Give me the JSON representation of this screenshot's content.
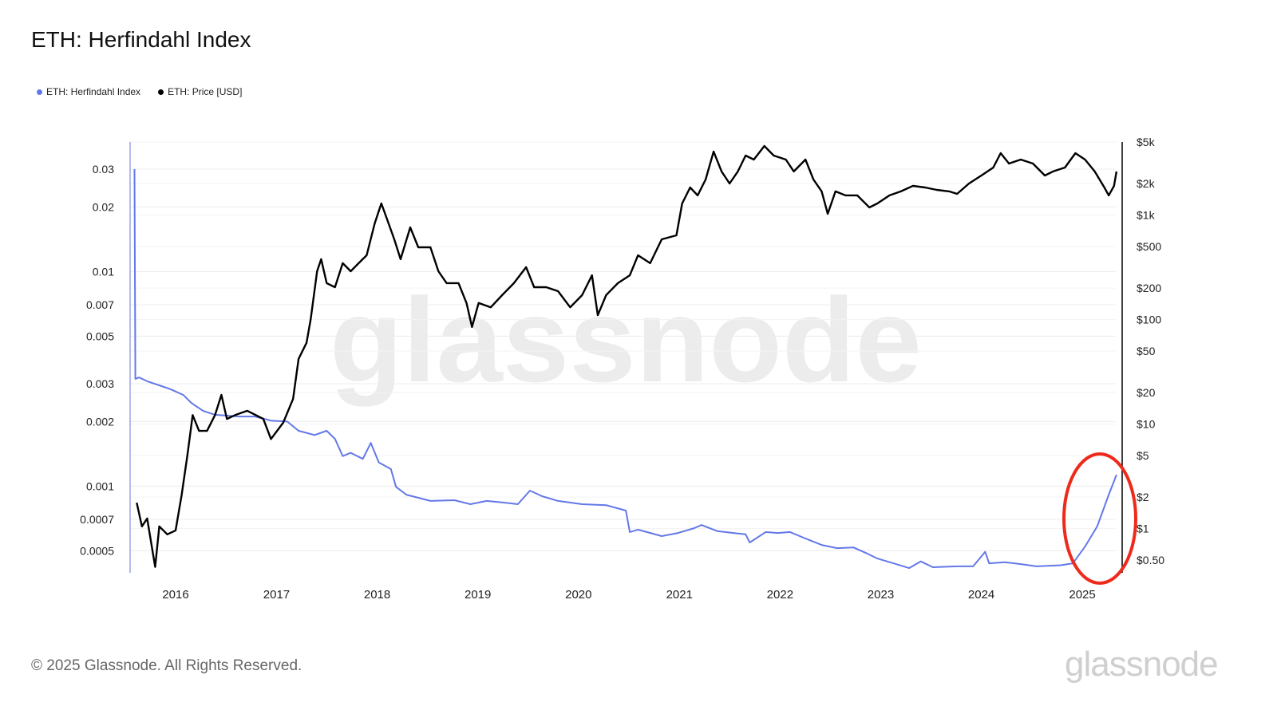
{
  "chart_data": {
    "type": "line",
    "title": "ETH: Herfindahl Index",
    "legend_position": "top-left",
    "grid": true,
    "x_ticks": [
      "2016",
      "2017",
      "2018",
      "2019",
      "2020",
      "2021",
      "2022",
      "2023",
      "2024",
      "2025"
    ],
    "xlim": [
      "2015-07-30",
      "2025-05-10"
    ],
    "y_left": {
      "scale": "log",
      "ticks": [
        "0.03",
        "0.02",
        "0.01",
        "0.007",
        "0.005",
        "0.003",
        "0.002",
        "0.001",
        "0.0007",
        "0.0005"
      ],
      "range": [
        0.00043,
        0.032
      ]
    },
    "y_right": {
      "scale": "log",
      "ticks": [
        "$5k",
        "$2k",
        "$1k",
        "$500",
        "$200",
        "$100",
        "$50",
        "$20",
        "$10",
        "$5",
        "$2",
        "$1",
        "$0.50"
      ],
      "tick_values": [
        5000,
        2000,
        1000,
        500,
        200,
        100,
        50,
        20,
        10,
        5,
        2,
        1,
        0.5
      ],
      "range": [
        0.5,
        5000
      ]
    },
    "series": [
      {
        "name": "ETH: Herfindahl Index",
        "color": "#6378e8",
        "axis": "left",
        "points": [
          [
            "2015-08-05",
            0.03
          ],
          [
            "2015-08-08",
            0.00316
          ],
          [
            "2015-08-22",
            0.00321
          ],
          [
            "2015-09-20",
            0.00308
          ],
          [
            "2015-11-03",
            0.00295
          ],
          [
            "2015-12-16",
            0.00282
          ],
          [
            "2016-01-29",
            0.00266
          ],
          [
            "2016-02-27",
            0.00244
          ],
          [
            "2016-04-10",
            0.00224
          ],
          [
            "2016-05-23",
            0.00215
          ],
          [
            "2016-08-18",
            0.00211
          ],
          [
            "2016-10-15",
            0.00211
          ],
          [
            "2016-12-12",
            0.00202
          ],
          [
            "2017-02-09",
            0.002
          ],
          [
            "2017-03-22",
            0.00181
          ],
          [
            "2017-05-19",
            0.00173
          ],
          [
            "2017-07-02",
            0.00181
          ],
          [
            "2017-08-01",
            0.00166
          ],
          [
            "2017-08-29",
            0.00138
          ],
          [
            "2017-09-27",
            0.00143
          ],
          [
            "2017-11-10",
            0.00134
          ],
          [
            "2017-12-09",
            0.00159
          ],
          [
            "2018-01-07",
            0.00129
          ],
          [
            "2018-02-20",
            0.0012
          ],
          [
            "2018-03-10",
            0.000993
          ],
          [
            "2018-04-17",
            0.000912
          ],
          [
            "2018-07-13",
            0.000853
          ],
          [
            "2018-10-08",
            0.00086
          ],
          [
            "2018-12-05",
            0.000824
          ],
          [
            "2019-02-02",
            0.000853
          ],
          [
            "2019-03-30",
            0.00084
          ],
          [
            "2019-05-26",
            0.000824
          ],
          [
            "2019-07-09",
            0.000953
          ],
          [
            "2019-08-22",
            0.000897
          ],
          [
            "2019-10-19",
            0.000853
          ],
          [
            "2020-01-14",
            0.000824
          ],
          [
            "2020-04-10",
            0.000815
          ],
          [
            "2020-06-21",
            0.000769
          ],
          [
            "2020-07-05",
            0.000611
          ],
          [
            "2020-08-04",
            0.000627
          ],
          [
            "2020-10-29",
            0.000585
          ],
          [
            "2020-12-27",
            0.000605
          ],
          [
            "2021-02-24",
            0.000637
          ],
          [
            "2021-03-22",
            0.000659
          ],
          [
            "2021-05-19",
            0.000617
          ],
          [
            "2021-07-16",
            0.000605
          ],
          [
            "2021-08-29",
            0.000596
          ],
          [
            "2021-09-13",
            0.000546
          ],
          [
            "2021-11-10",
            0.000611
          ],
          [
            "2021-12-23",
            0.000605
          ],
          [
            "2022-02-06",
            0.000611
          ],
          [
            "2022-04-03",
            0.00057
          ],
          [
            "2022-06-01",
            0.000532
          ],
          [
            "2022-07-27",
            0.000514
          ],
          [
            "2022-09-24",
            0.000518
          ],
          [
            "2022-11-07",
            0.000489
          ],
          [
            "2022-12-20",
            0.00046
          ],
          [
            "2023-02-16",
            0.000437
          ],
          [
            "2023-04-14",
            0.000415
          ],
          [
            "2023-05-26",
            0.000446
          ],
          [
            "2023-07-09",
            0.000419
          ],
          [
            "2023-10-05",
            0.000423
          ],
          [
            "2023-12-02",
            0.000423
          ],
          [
            "2024-01-15",
            0.000494
          ],
          [
            "2024-01-29",
            0.000437
          ],
          [
            "2024-03-26",
            0.000442
          ],
          [
            "2024-05-23",
            0.000433
          ],
          [
            "2024-07-20",
            0.000423
          ],
          [
            "2024-10-15",
            0.000428
          ],
          [
            "2024-11-28",
            0.000437
          ],
          [
            "2025-01-11",
            0.000523
          ],
          [
            "2025-02-24",
            0.000649
          ],
          [
            "2025-04-07",
            0.000912
          ],
          [
            "2025-05-05",
            0.00113
          ]
        ]
      },
      {
        "name": "ETH: Price [USD]",
        "color": "#000000",
        "axis": "right",
        "points": [
          [
            "2015-08-13",
            1.77
          ],
          [
            "2015-09-01",
            1.05
          ],
          [
            "2015-09-20",
            1.25
          ],
          [
            "2015-10-19",
            0.43
          ],
          [
            "2015-11-03",
            1.05
          ],
          [
            "2015-12-02",
            0.88
          ],
          [
            "2016-01-01",
            0.96
          ],
          [
            "2016-01-23",
            2.1
          ],
          [
            "2016-02-13",
            5.1
          ],
          [
            "2016-03-03",
            12.2
          ],
          [
            "2016-03-26",
            8.6
          ],
          [
            "2016-04-24",
            8.6
          ],
          [
            "2016-05-23",
            12.2
          ],
          [
            "2016-06-15",
            19
          ],
          [
            "2016-07-05",
            11.2
          ],
          [
            "2016-08-04",
            12.2
          ],
          [
            "2016-09-17",
            13.4
          ],
          [
            "2016-11-14",
            11.2
          ],
          [
            "2016-12-12",
            7.2
          ],
          [
            "2017-01-25",
            10.3
          ],
          [
            "2017-03-02",
            17.4
          ],
          [
            "2017-03-22",
            42
          ],
          [
            "2017-04-20",
            60
          ],
          [
            "2017-05-05",
            101
          ],
          [
            "2017-05-28",
            290
          ],
          [
            "2017-06-12",
            378
          ],
          [
            "2017-07-02",
            223
          ],
          [
            "2017-08-01",
            204
          ],
          [
            "2017-08-29",
            346
          ],
          [
            "2017-09-27",
            290
          ],
          [
            "2017-10-26",
            346
          ],
          [
            "2017-11-24",
            412
          ],
          [
            "2017-12-23",
            832
          ],
          [
            "2018-01-16",
            1291
          ],
          [
            "2018-02-06",
            910
          ],
          [
            "2018-03-04",
            586
          ],
          [
            "2018-03-27",
            378
          ],
          [
            "2018-05-01",
            762
          ],
          [
            "2018-05-30",
            491
          ],
          [
            "2018-07-13",
            491
          ],
          [
            "2018-08-11",
            290
          ],
          [
            "2018-09-10",
            223
          ],
          [
            "2018-10-23",
            223
          ],
          [
            "2018-11-21",
            144
          ],
          [
            "2018-12-11",
            85
          ],
          [
            "2019-01-04",
            144
          ],
          [
            "2019-02-17",
            131
          ],
          [
            "2019-03-30",
            171
          ],
          [
            "2019-05-12",
            223
          ],
          [
            "2019-06-25",
            317
          ],
          [
            "2019-07-24",
            204
          ],
          [
            "2019-09-06",
            204
          ],
          [
            "2019-10-19",
            187
          ],
          [
            "2019-12-02",
            131
          ],
          [
            "2020-01-14",
            171
          ],
          [
            "2020-02-19",
            265
          ],
          [
            "2020-03-11",
            110
          ],
          [
            "2020-04-10",
            171
          ],
          [
            "2020-05-23",
            223
          ],
          [
            "2020-07-05",
            265
          ],
          [
            "2020-08-04",
            412
          ],
          [
            "2020-09-17",
            346
          ],
          [
            "2020-10-29",
            586
          ],
          [
            "2020-12-21",
            640
          ],
          [
            "2021-01-11",
            1291
          ],
          [
            "2021-02-09",
            1837
          ],
          [
            "2021-03-08",
            1542
          ],
          [
            "2021-04-06",
            2188
          ],
          [
            "2021-05-05",
            4046
          ],
          [
            "2021-06-03",
            2612
          ],
          [
            "2021-07-02",
            2005
          ],
          [
            "2021-08-01",
            2612
          ],
          [
            "2021-08-29",
            3707
          ],
          [
            "2021-09-28",
            3396
          ],
          [
            "2021-11-05",
            4581
          ],
          [
            "2021-12-09",
            3707
          ],
          [
            "2022-01-22",
            3396
          ],
          [
            "2022-02-20",
            2612
          ],
          [
            "2022-04-03",
            3396
          ],
          [
            "2022-05-02",
            2188
          ],
          [
            "2022-06-01",
            1683
          ],
          [
            "2022-06-23",
            1028
          ],
          [
            "2022-07-21",
            1683
          ],
          [
            "2022-08-26",
            1542
          ],
          [
            "2022-10-08",
            1542
          ],
          [
            "2022-11-21",
            1183
          ],
          [
            "2022-12-20",
            1291
          ],
          [
            "2023-02-02",
            1542
          ],
          [
            "2023-03-15",
            1683
          ],
          [
            "2023-04-28",
            1901
          ],
          [
            "2023-06-11",
            1837
          ],
          [
            "2023-07-23",
            1742
          ],
          [
            "2023-09-06",
            1683
          ],
          [
            "2023-10-05",
            1596
          ],
          [
            "2023-11-17",
            2005
          ],
          [
            "2024-01-01",
            2388
          ],
          [
            "2024-02-13",
            2851
          ],
          [
            "2024-03-11",
            3908
          ],
          [
            "2024-04-10",
            3112
          ],
          [
            "2024-05-23",
            3396
          ],
          [
            "2024-07-06",
            3112
          ],
          [
            "2024-08-18",
            2388
          ],
          [
            "2024-09-17",
            2612
          ],
          [
            "2024-10-30",
            2851
          ],
          [
            "2024-12-07",
            3908
          ],
          [
            "2025-01-11",
            3396
          ],
          [
            "2025-02-15",
            2612
          ],
          [
            "2025-03-22",
            1837
          ],
          [
            "2025-04-07",
            1542
          ],
          [
            "2025-04-26",
            1901
          ],
          [
            "2025-05-05",
            2612
          ]
        ]
      }
    ],
    "annotation": {
      "shape": "ellipse",
      "color": "#ee2a1b",
      "around": "ETH: Herfindahl Index, 2025"
    }
  },
  "legend": {
    "items": [
      {
        "label": "ETH: Herfindahl Index",
        "color": "#6378e8"
      },
      {
        "label": "ETH: Price [USD]",
        "color": "#000000"
      }
    ]
  },
  "watermark": "glassnode",
  "footer": {
    "copyright": "© 2025 Glassnode. All Rights Reserved.",
    "logo": "glassnode"
  }
}
